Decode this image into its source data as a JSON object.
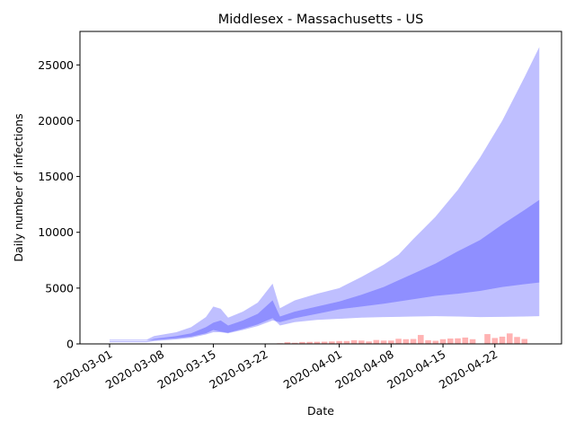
{
  "chart_data": {
    "type": "area",
    "title": "Middlesex - Massachusetts - US",
    "xlabel": "Date",
    "ylabel": "Daily number of infections",
    "ylim": [
      0,
      28000
    ],
    "xlim": [
      "2020-02-26",
      "2020-05-01"
    ],
    "x_ticks": [
      "2020-03-01",
      "2020-03-08",
      "2020-03-15",
      "2020-03-22",
      "2020-04-01",
      "2020-04-08",
      "2020-04-15",
      "2020-04-22"
    ],
    "y_ticks": [
      0,
      5000,
      10000,
      15000,
      20000,
      25000
    ],
    "grid": false,
    "colors": {
      "band": "#0000ff",
      "bars": "#ff0000"
    },
    "bands": {
      "outer": {
        "points": [
          [
            "2020-03-01",
            300,
            380
          ],
          [
            "2020-03-06",
            300,
            380
          ],
          [
            "2020-03-07",
            350,
            700
          ],
          [
            "2020-03-10",
            500,
            1050
          ],
          [
            "2020-03-12",
            650,
            1500
          ],
          [
            "2020-03-14",
            950,
            2400
          ],
          [
            "2020-03-15",
            1250,
            3350
          ],
          [
            "2020-03-16",
            1100,
            3150
          ],
          [
            "2020-03-17",
            1000,
            2350
          ],
          [
            "2020-03-19",
            1350,
            2900
          ],
          [
            "2020-03-21",
            1750,
            3700
          ],
          [
            "2020-03-23",
            2300,
            5400
          ],
          [
            "2020-03-24",
            1650,
            3200
          ],
          [
            "2020-03-26",
            1950,
            3900
          ],
          [
            "2020-03-29",
            2150,
            4500
          ],
          [
            "2020-04-01",
            2250,
            5000
          ],
          [
            "2020-04-04",
            2350,
            6000
          ],
          [
            "2020-04-07",
            2400,
            7100
          ],
          [
            "2020-04-09",
            2420,
            8000
          ],
          [
            "2020-04-11",
            2450,
            9400
          ],
          [
            "2020-04-14",
            2480,
            11400
          ],
          [
            "2020-04-17",
            2450,
            13800
          ],
          [
            "2020-04-20",
            2400,
            16700
          ],
          [
            "2020-04-23",
            2420,
            20000
          ],
          [
            "2020-04-26",
            2450,
            23900
          ],
          [
            "2020-04-28",
            2480,
            26600
          ]
        ]
      },
      "inner": {
        "points": [
          [
            "2020-03-01",
            150,
            250
          ],
          [
            "2020-03-06",
            150,
            250
          ],
          [
            "2020-03-07",
            250,
            450
          ],
          [
            "2020-03-10",
            400,
            700
          ],
          [
            "2020-03-12",
            550,
            950
          ],
          [
            "2020-03-14",
            850,
            1500
          ],
          [
            "2020-03-15",
            1050,
            1900
          ],
          [
            "2020-03-16",
            1050,
            2100
          ],
          [
            "2020-03-17",
            950,
            1650
          ],
          [
            "2020-03-19",
            1250,
            2100
          ],
          [
            "2020-03-21",
            1600,
            2700
          ],
          [
            "2020-03-23",
            2100,
            3900
          ],
          [
            "2020-03-24",
            1950,
            2450
          ],
          [
            "2020-03-26",
            2300,
            2900
          ],
          [
            "2020-03-29",
            2700,
            3350
          ],
          [
            "2020-04-01",
            3100,
            3800
          ],
          [
            "2020-04-04",
            3350,
            4400
          ],
          [
            "2020-04-07",
            3600,
            5100
          ],
          [
            "2020-04-09",
            3800,
            5700
          ],
          [
            "2020-04-11",
            4000,
            6300
          ],
          [
            "2020-04-14",
            4300,
            7200
          ],
          [
            "2020-04-17",
            4500,
            8300
          ],
          [
            "2020-04-20",
            4750,
            9300
          ],
          [
            "2020-04-23",
            5100,
            10700
          ],
          [
            "2020-04-26",
            5350,
            12000
          ],
          [
            "2020-04-28",
            5500,
            12900
          ]
        ]
      }
    },
    "bars": {
      "dates": [
        "2020-03-24",
        "2020-03-25",
        "2020-03-26",
        "2020-03-27",
        "2020-03-28",
        "2020-03-29",
        "2020-03-30",
        "2020-03-31",
        "2020-04-01",
        "2020-04-02",
        "2020-04-03",
        "2020-04-04",
        "2020-04-05",
        "2020-04-06",
        "2020-04-07",
        "2020-04-08",
        "2020-04-09",
        "2020-04-10",
        "2020-04-11",
        "2020-04-12",
        "2020-04-13",
        "2020-04-14",
        "2020-04-15",
        "2020-04-16",
        "2020-04-17",
        "2020-04-18",
        "2020-04-19",
        "2020-04-20",
        "2020-04-21",
        "2020-04-22",
        "2020-04-23",
        "2020-04-24",
        "2020-04-25",
        "2020-04-26",
        "2020-04-27"
      ],
      "values": [
        60,
        150,
        100,
        170,
        180,
        190,
        200,
        220,
        260,
        260,
        330,
        300,
        220,
        350,
        300,
        300,
        460,
        420,
        440,
        800,
        330,
        280,
        420,
        480,
        500,
        570,
        420,
        0,
        880,
        530,
        650,
        940,
        620,
        440,
        0
      ]
    }
  }
}
